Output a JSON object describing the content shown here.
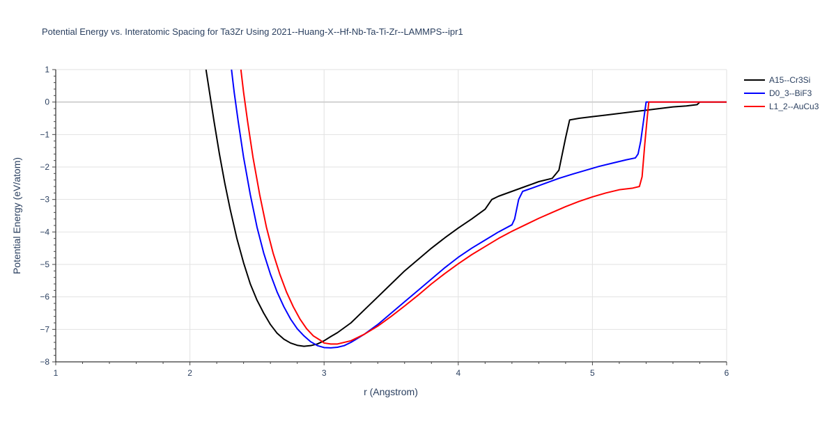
{
  "chart_data": {
    "type": "line",
    "title": "Potential Energy vs. Interatomic Spacing for Ta3Zr Using 2021--Huang-X--Hf-Nb-Ta-Ti-Zr--LAMMPS--ipr1",
    "xlabel": "r (Angstrom)",
    "ylabel": "Potential Energy (eV/atom)",
    "xlim": [
      1,
      6
    ],
    "ylim": [
      -8,
      1
    ],
    "x_ticks": [
      1,
      2,
      3,
      4,
      5,
      6
    ],
    "x_tick_labels": [
      "1",
      "2",
      "3",
      "4",
      "5",
      "6"
    ],
    "y_ticks": [
      1,
      0,
      -1,
      -2,
      -3,
      -4,
      -5,
      -6,
      -7,
      -8
    ],
    "y_tick_labels": [
      "1",
      "0",
      "−1",
      "−2",
      "−3",
      "−4",
      "−5",
      "−6",
      "−7",
      "−8"
    ],
    "grid": true,
    "legend_position": "top-right",
    "series": [
      {
        "name": "A15--Cr3Si",
        "color": "#000000",
        "points": [
          [
            2.12,
            1.0
          ],
          [
            2.15,
            0.2
          ],
          [
            2.18,
            -0.6
          ],
          [
            2.22,
            -1.6
          ],
          [
            2.26,
            -2.5
          ],
          [
            2.3,
            -3.3
          ],
          [
            2.35,
            -4.2
          ],
          [
            2.4,
            -4.95
          ],
          [
            2.45,
            -5.6
          ],
          [
            2.5,
            -6.1
          ],
          [
            2.55,
            -6.5
          ],
          [
            2.6,
            -6.85
          ],
          [
            2.65,
            -7.12
          ],
          [
            2.7,
            -7.3
          ],
          [
            2.75,
            -7.42
          ],
          [
            2.8,
            -7.49
          ],
          [
            2.85,
            -7.52
          ],
          [
            2.9,
            -7.5
          ],
          [
            2.95,
            -7.45
          ],
          [
            3.0,
            -7.35
          ],
          [
            3.05,
            -7.22
          ],
          [
            3.1,
            -7.1
          ],
          [
            3.2,
            -6.8
          ],
          [
            3.3,
            -6.4
          ],
          [
            3.4,
            -6.0
          ],
          [
            3.5,
            -5.6
          ],
          [
            3.6,
            -5.2
          ],
          [
            3.7,
            -4.85
          ],
          [
            3.8,
            -4.5
          ],
          [
            3.9,
            -4.18
          ],
          [
            4.0,
            -3.88
          ],
          [
            4.1,
            -3.6
          ],
          [
            4.15,
            -3.45
          ],
          [
            4.2,
            -3.3
          ],
          [
            4.25,
            -3.0
          ],
          [
            4.3,
            -2.9
          ],
          [
            4.4,
            -2.75
          ],
          [
            4.5,
            -2.6
          ],
          [
            4.6,
            -2.45
          ],
          [
            4.7,
            -2.35
          ],
          [
            4.75,
            -2.1
          ],
          [
            4.8,
            -1.1
          ],
          [
            4.83,
            -0.55
          ],
          [
            4.9,
            -0.5
          ],
          [
            5.0,
            -0.45
          ],
          [
            5.1,
            -0.4
          ],
          [
            5.2,
            -0.35
          ],
          [
            5.3,
            -0.3
          ],
          [
            5.4,
            -0.25
          ],
          [
            5.5,
            -0.2
          ],
          [
            5.6,
            -0.15
          ],
          [
            5.7,
            -0.12
          ],
          [
            5.78,
            -0.08
          ],
          [
            5.8,
            0.0
          ],
          [
            5.9,
            0.0
          ],
          [
            6.0,
            0.0
          ]
        ]
      },
      {
        "name": "D0_3--BiF3",
        "color": "#0000ff",
        "points": [
          [
            2.31,
            1.0
          ],
          [
            2.33,
            0.3
          ],
          [
            2.36,
            -0.6
          ],
          [
            2.4,
            -1.7
          ],
          [
            2.45,
            -2.85
          ],
          [
            2.5,
            -3.85
          ],
          [
            2.55,
            -4.65
          ],
          [
            2.6,
            -5.3
          ],
          [
            2.65,
            -5.85
          ],
          [
            2.7,
            -6.3
          ],
          [
            2.75,
            -6.68
          ],
          [
            2.8,
            -6.98
          ],
          [
            2.85,
            -7.2
          ],
          [
            2.9,
            -7.38
          ],
          [
            2.95,
            -7.5
          ],
          [
            3.0,
            -7.56
          ],
          [
            3.05,
            -7.57
          ],
          [
            3.1,
            -7.55
          ],
          [
            3.15,
            -7.5
          ],
          [
            3.2,
            -7.4
          ],
          [
            3.3,
            -7.15
          ],
          [
            3.4,
            -6.85
          ],
          [
            3.5,
            -6.5
          ],
          [
            3.6,
            -6.15
          ],
          [
            3.7,
            -5.8
          ],
          [
            3.8,
            -5.45
          ],
          [
            3.9,
            -5.1
          ],
          [
            4.0,
            -4.78
          ],
          [
            4.1,
            -4.5
          ],
          [
            4.2,
            -4.25
          ],
          [
            4.3,
            -4.0
          ],
          [
            4.4,
            -3.78
          ],
          [
            4.42,
            -3.6
          ],
          [
            4.45,
            -3.0
          ],
          [
            4.48,
            -2.75
          ],
          [
            4.55,
            -2.65
          ],
          [
            4.65,
            -2.5
          ],
          [
            4.75,
            -2.35
          ],
          [
            4.85,
            -2.22
          ],
          [
            4.95,
            -2.1
          ],
          [
            5.05,
            -1.98
          ],
          [
            5.15,
            -1.88
          ],
          [
            5.25,
            -1.78
          ],
          [
            5.32,
            -1.72
          ],
          [
            5.34,
            -1.6
          ],
          [
            5.36,
            -1.2
          ],
          [
            5.38,
            -0.6
          ],
          [
            5.4,
            0.0
          ],
          [
            5.5,
            0.0
          ],
          [
            6.0,
            0.0
          ]
        ]
      },
      {
        "name": "L1_2--AuCu3",
        "color": "#ff0000",
        "points": [
          [
            2.38,
            1.0
          ],
          [
            2.4,
            0.3
          ],
          [
            2.43,
            -0.6
          ],
          [
            2.47,
            -1.7
          ],
          [
            2.52,
            -2.85
          ],
          [
            2.57,
            -3.85
          ],
          [
            2.62,
            -4.65
          ],
          [
            2.67,
            -5.3
          ],
          [
            2.72,
            -5.85
          ],
          [
            2.77,
            -6.3
          ],
          [
            2.82,
            -6.68
          ],
          [
            2.87,
            -6.98
          ],
          [
            2.92,
            -7.2
          ],
          [
            2.97,
            -7.33
          ],
          [
            3.0,
            -7.42
          ],
          [
            3.05,
            -7.45
          ],
          [
            3.1,
            -7.45
          ],
          [
            3.2,
            -7.35
          ],
          [
            3.3,
            -7.15
          ],
          [
            3.4,
            -6.9
          ],
          [
            3.5,
            -6.6
          ],
          [
            3.6,
            -6.28
          ],
          [
            3.7,
            -5.95
          ],
          [
            3.8,
            -5.6
          ],
          [
            3.9,
            -5.28
          ],
          [
            4.0,
            -4.98
          ],
          [
            4.1,
            -4.7
          ],
          [
            4.2,
            -4.45
          ],
          [
            4.3,
            -4.2
          ],
          [
            4.4,
            -3.98
          ],
          [
            4.5,
            -3.78
          ],
          [
            4.6,
            -3.58
          ],
          [
            4.7,
            -3.4
          ],
          [
            4.8,
            -3.22
          ],
          [
            4.9,
            -3.06
          ],
          [
            5.0,
            -2.92
          ],
          [
            5.1,
            -2.8
          ],
          [
            5.2,
            -2.7
          ],
          [
            5.3,
            -2.65
          ],
          [
            5.35,
            -2.6
          ],
          [
            5.37,
            -2.3
          ],
          [
            5.39,
            -1.3
          ],
          [
            5.41,
            -0.4
          ],
          [
            5.42,
            0.0
          ],
          [
            5.5,
            0.0
          ],
          [
            6.0,
            0.0
          ]
        ]
      }
    ]
  }
}
